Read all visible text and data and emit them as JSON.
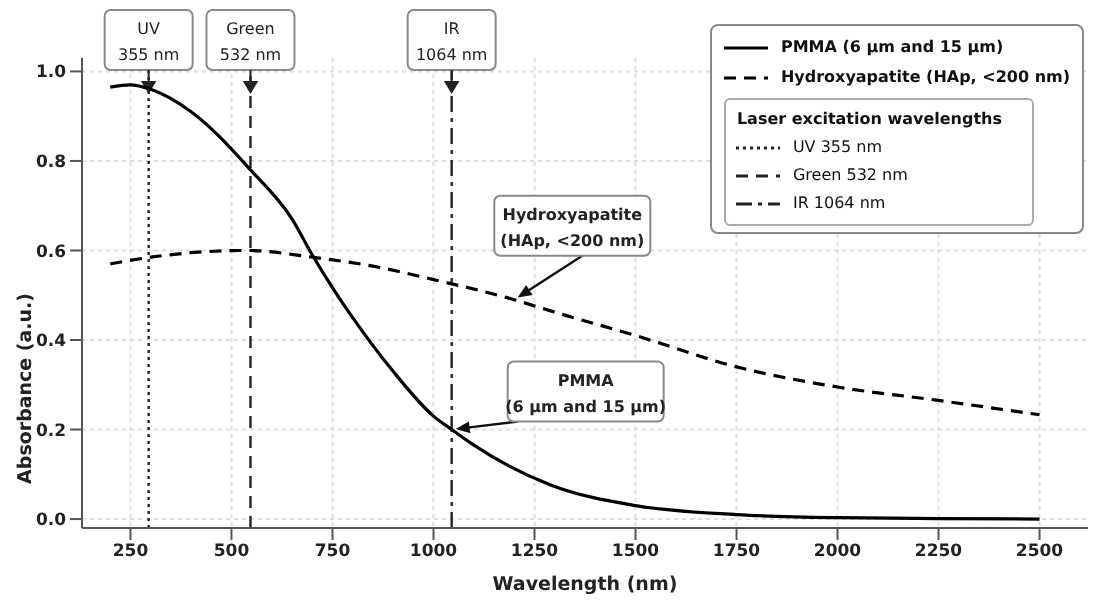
{
  "chart_data": {
    "type": "line",
    "xlabel": "Wavelength (nm)",
    "ylabel": "Absorbance (a.u.)",
    "xlim": [
      130,
      2620
    ],
    "xticks": [
      250,
      500,
      750,
      1000,
      1250,
      1500,
      1750,
      2000,
      2250,
      2500
    ],
    "ylim": [
      -0.02,
      1.03
    ],
    "yticks": [
      {
        "value": 0,
        "label": "0.0"
      },
      0.2,
      0.4,
      0.6,
      0.8,
      {
        "value": 1,
        "label": "1.0"
      }
    ],
    "grid": true,
    "legend": "top right",
    "legend_title": "Laser excitation wavelengths",
    "marker": "none",
    "series": [
      {
        "name": "PMMA (6 μm and 15 μm)",
        "color": "#000000",
        "line_style": "solid",
        "x": [
          200,
          250,
          300,
          400,
          547,
          650,
          700,
          755,
          800,
          900,
          1000,
          1045,
          1100,
          1290,
          1500,
          1750,
          2000,
          2250,
          2500
        ],
        "values": [
          0.965,
          0.97,
          0.96,
          0.91,
          0.78,
          0.67,
          0.59,
          0.51,
          0.45,
          0.33,
          0.23,
          0.2,
          0.165,
          0.076,
          0.03,
          0.01,
          0.003,
          0.001,
          0
        ]
      },
      {
        "name": "Hydroxyapatite (HAp, <200 nm)",
        "color": "#000000",
        "line_style": "dashed",
        "x": [
          200,
          300,
          400,
          540,
          700,
          850,
          1000,
          1200,
          1290,
          1500,
          1750,
          2000,
          2250,
          2500
        ],
        "values": [
          0.57,
          0.585,
          0.595,
          0.6,
          0.585,
          0.565,
          0.535,
          0.49,
          0.465,
          0.41,
          0.34,
          0.295,
          0.265,
          0.233
        ]
      }
    ],
    "ref_lines": [
      {
        "axis": "x",
        "value": 295,
        "label": "UV\n355 nm",
        "line_style": "dotted",
        "color": "#222222"
      },
      {
        "axis": "x",
        "value": 547,
        "label": "Green\n532 nm",
        "line_style": "dashed",
        "color": "#222222"
      },
      {
        "axis": "x",
        "value": 1045,
        "label": "IR\n1064 nm",
        "line_style": "dashdot",
        "color": "#222222"
      }
    ],
    "annotations": [
      {
        "text": "Hydroxyapatite\n(HAp, <200 nm)",
        "x": 1200,
        "y": 0.49
      },
      {
        "text": "PMMA\n(6 μm and 15 μm)",
        "x": 1045,
        "y": 0.2
      }
    ]
  }
}
